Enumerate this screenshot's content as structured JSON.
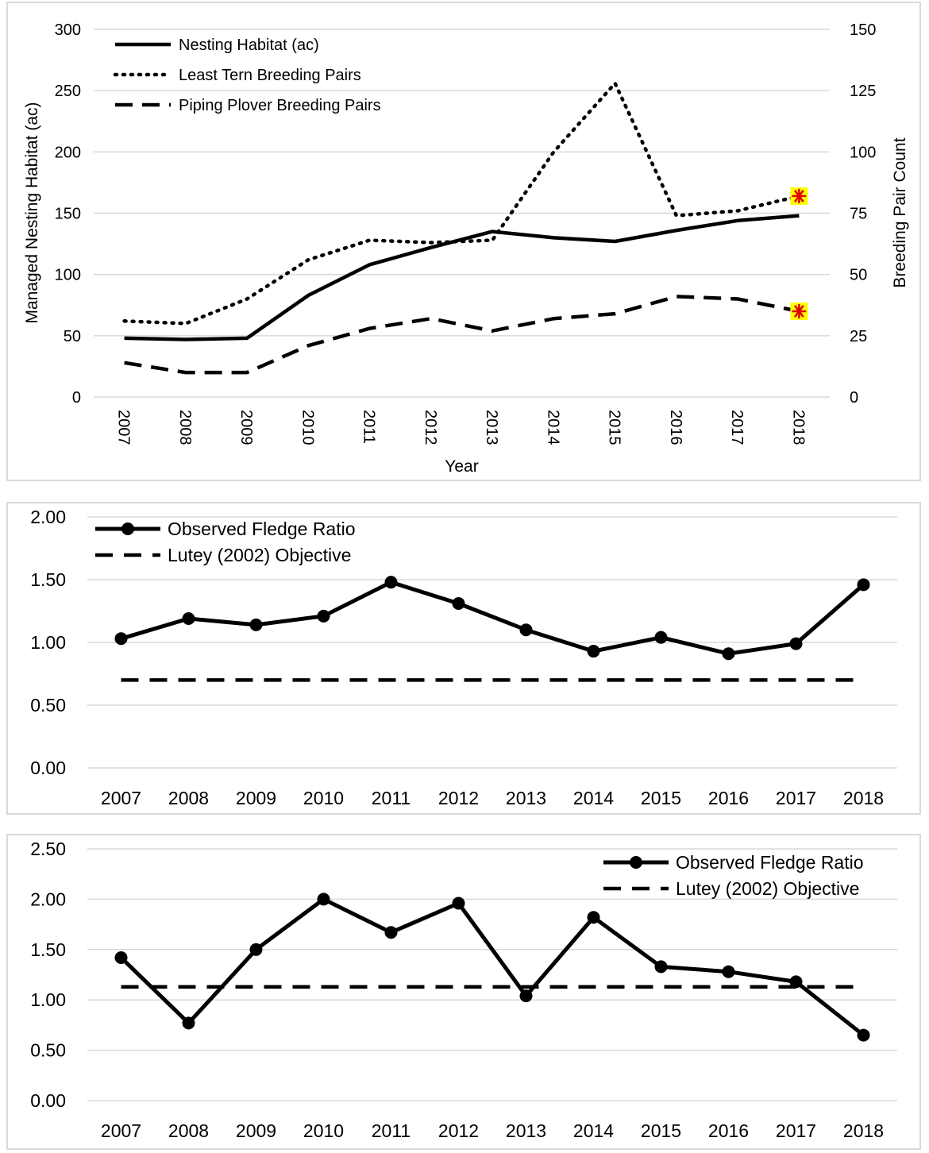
{
  "chart_data": [
    {
      "type": "line",
      "categories": [
        "2007",
        "2008",
        "2009",
        "2010",
        "2011",
        "2012",
        "2013",
        "2014",
        "2015",
        "2016",
        "2017",
        "2018"
      ],
      "xlabel": "Year",
      "ylabel": "Managed Nesting Habitat (ac)",
      "y2label": "Breeding Pair Count",
      "ylim": [
        0,
        300
      ],
      "y2lim": [
        0,
        150
      ],
      "yticks": [
        "0",
        "50",
        "100",
        "150",
        "200",
        "250",
        "300"
      ],
      "y2ticks": [
        "0",
        "25",
        "50",
        "75",
        "100",
        "125",
        "150"
      ],
      "grid": true,
      "legend_position": "top-left",
      "series": [
        {
          "name": "Nesting Habitat (ac)",
          "axis": "left",
          "style": "solid",
          "values": [
            48,
            47,
            48,
            83,
            108,
            122,
            135,
            130,
            127,
            136,
            144,
            148
          ]
        },
        {
          "name": "Least Tern Breeding Pairs",
          "axis": "right",
          "style": "dotted",
          "values": [
            31,
            30,
            40,
            56,
            64,
            63,
            64,
            100,
            128,
            74,
            76,
            82
          ]
        },
        {
          "name": "Piping Plover Breeding Pairs",
          "axis": "right",
          "style": "dashed",
          "values": [
            14,
            10,
            10,
            21,
            28,
            32,
            27,
            32,
            34,
            41,
            40,
            35
          ]
        }
      ],
      "markers": [
        {
          "series": "Least Tern Breeding Pairs",
          "category": "2018",
          "symbol": "star",
          "highlight_color": "#ffff00",
          "symbol_color": "#e00000"
        },
        {
          "series": "Piping Plover Breeding Pairs",
          "category": "2018",
          "symbol": "star",
          "highlight_color": "#ffff00",
          "symbol_color": "#e00000"
        }
      ]
    },
    {
      "type": "line",
      "categories": [
        "2007",
        "2008",
        "2009",
        "2010",
        "2011",
        "2012",
        "2013",
        "2014",
        "2015",
        "2016",
        "2017",
        "2018"
      ],
      "ylim": [
        0,
        2
      ],
      "yticks": [
        "0.00",
        "0.50",
        "1.00",
        "1.50",
        "2.00"
      ],
      "grid": true,
      "legend_position": "top-left",
      "series": [
        {
          "name": "Observed Fledge Ratio",
          "style": "solid-markers",
          "values": [
            1.03,
            1.19,
            1.14,
            1.21,
            1.48,
            1.31,
            1.1,
            0.93,
            1.04,
            0.91,
            0.99,
            1.46
          ]
        },
        {
          "name": "Lutey (2002) Objective",
          "style": "dashed",
          "values": [
            0.7,
            0.7,
            0.7,
            0.7,
            0.7,
            0.7,
            0.7,
            0.7,
            0.7,
            0.7,
            0.7,
            0.7
          ]
        }
      ]
    },
    {
      "type": "line",
      "categories": [
        "2007",
        "2008",
        "2009",
        "2010",
        "2011",
        "2012",
        "2013",
        "2014",
        "2015",
        "2016",
        "2017",
        "2018"
      ],
      "ylim": [
        0,
        2.5
      ],
      "yticks": [
        "0.00",
        "0.50",
        "1.00",
        "1.50",
        "2.00",
        "2.50"
      ],
      "grid": true,
      "legend_position": "top-right",
      "series": [
        {
          "name": "Observed Fledge Ratio",
          "style": "solid-markers",
          "values": [
            1.42,
            0.77,
            1.5,
            2.0,
            1.67,
            1.96,
            1.04,
            1.82,
            1.33,
            1.28,
            1.18,
            0.65
          ]
        },
        {
          "name": "Lutey (2002) Objective",
          "style": "dashed",
          "values": [
            1.13,
            1.13,
            1.13,
            1.13,
            1.13,
            1.13,
            1.13,
            1.13,
            1.13,
            1.13,
            1.13,
            1.13
          ]
        }
      ]
    }
  ]
}
